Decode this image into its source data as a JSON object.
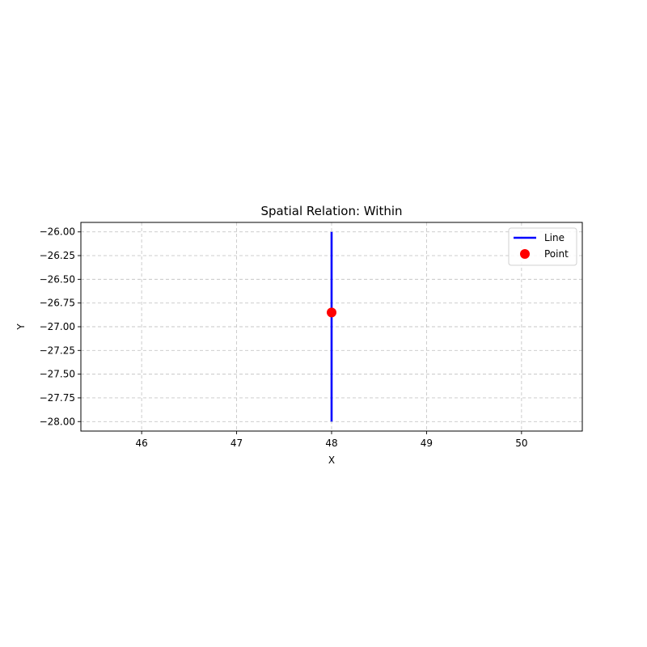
{
  "chart_data": {
    "type": "line",
    "title": "Spatial Relation: Within",
    "xlabel": "X",
    "ylabel": "Y",
    "xlim": [
      45.36,
      50.64
    ],
    "ylim": [
      -28.1,
      -25.9
    ],
    "xticks": [
      46,
      47,
      48,
      49,
      50
    ],
    "yticks": [
      -26.0,
      -26.25,
      -26.5,
      -26.75,
      -27.0,
      -27.25,
      -27.5,
      -27.75,
      -28.0
    ],
    "xtick_labels": [
      "46",
      "47",
      "48",
      "49",
      "50"
    ],
    "ytick_labels": [
      "−26.00",
      "−26.25",
      "−26.50",
      "−26.75",
      "−27.00",
      "−27.25",
      "−27.50",
      "−27.75",
      "−28.00"
    ],
    "grid": true,
    "legend_position": "top-right",
    "series": [
      {
        "name": "Line",
        "kind": "line",
        "color": "#0000ff",
        "points": [
          [
            48.0,
            -26.0
          ],
          [
            48.0,
            -28.0
          ]
        ]
      },
      {
        "name": "Point",
        "kind": "scatter",
        "color": "#ff0000",
        "points": [
          [
            48.0,
            -26.85
          ]
        ]
      }
    ]
  }
}
